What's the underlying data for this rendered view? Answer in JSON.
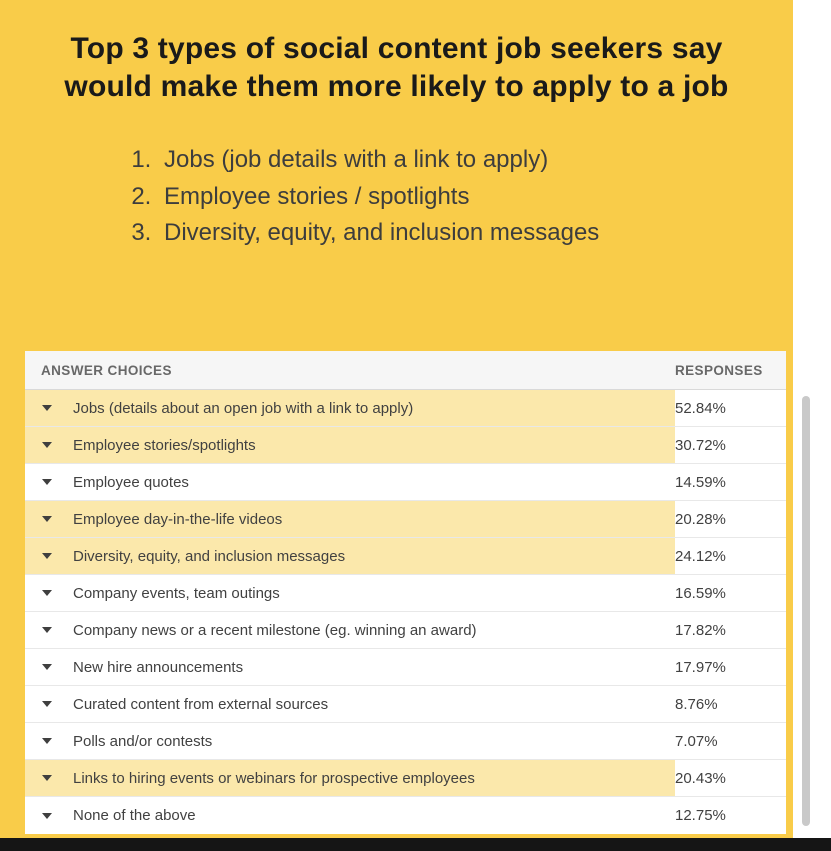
{
  "colors": {
    "background": "#F9CC49",
    "row_highlight": "#FBE8AB",
    "bottom_bar": "#151515"
  },
  "headline": "Top 3 types of social content job seekers say would make them more likely to apply to a job",
  "list": {
    "items": [
      "Jobs (job details with a link to apply)",
      "Employee stories / spotlights",
      "Diversity, equity, and inclusion messages"
    ]
  },
  "table": {
    "headers": {
      "answer": "ANSWER CHOICES",
      "responses": "RESPONSES"
    },
    "rows": [
      {
        "label": "Jobs (details about an open job with a link to apply)",
        "value": "52.84%",
        "highlighted": true
      },
      {
        "label": "Employee stories/spotlights",
        "value": "30.72%",
        "highlighted": true
      },
      {
        "label": "Employee quotes",
        "value": "14.59%",
        "highlighted": false
      },
      {
        "label": "Employee day-in-the-life videos",
        "value": "20.28%",
        "highlighted": true
      },
      {
        "label": "Diversity, equity, and inclusion messages",
        "value": "24.12%",
        "highlighted": true
      },
      {
        "label": "Company events, team outings",
        "value": "16.59%",
        "highlighted": false
      },
      {
        "label": "Company news or a recent milestone (eg. winning an award)",
        "value": "17.82%",
        "highlighted": false
      },
      {
        "label": "New hire announcements",
        "value": "17.97%",
        "highlighted": false
      },
      {
        "label": "Curated content from external sources",
        "value": "8.76%",
        "highlighted": false
      },
      {
        "label": "Polls and/or contests",
        "value": "7.07%",
        "highlighted": false
      },
      {
        "label": "Links to hiring events or webinars for prospective employees",
        "value": "20.43%",
        "highlighted": true
      },
      {
        "label": "None of the above",
        "value": "12.75%",
        "highlighted": false
      }
    ]
  },
  "chart_data": {
    "type": "table",
    "title": "Top 3 types of social content job seekers say would make them more likely to apply to a job",
    "columns": [
      "ANSWER CHOICES",
      "RESPONSES"
    ],
    "categories": [
      "Jobs (details about an open job with a link to apply)",
      "Employee stories/spotlights",
      "Employee quotes",
      "Employee day-in-the-life videos",
      "Diversity, equity, and inclusion messages",
      "Company events, team outings",
      "Company news or a recent milestone (eg. winning an award)",
      "New hire announcements",
      "Curated content from external sources",
      "Polls and/or contests",
      "Links to hiring events or webinars for prospective employees",
      "None of the above"
    ],
    "values": [
      52.84,
      30.72,
      14.59,
      20.28,
      24.12,
      16.59,
      17.82,
      17.97,
      8.76,
      7.07,
      20.43,
      12.75
    ],
    "highlighted_categories": [
      "Jobs (details about an open job with a link to apply)",
      "Employee stories/spotlights",
      "Employee day-in-the-life videos",
      "Diversity, equity, and inclusion messages",
      "Links to hiring events or webinars for prospective employees"
    ],
    "value_unit": "%"
  }
}
